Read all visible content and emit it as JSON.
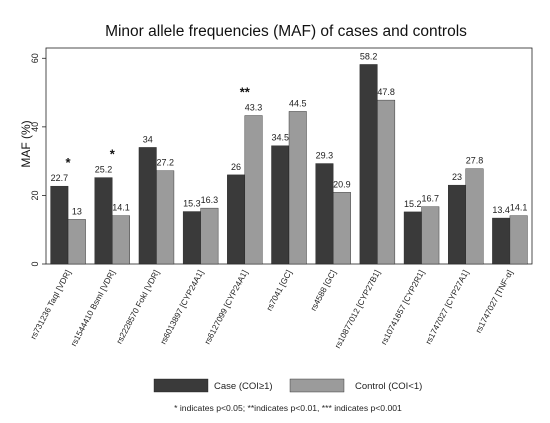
{
  "chart_data": {
    "type": "bar",
    "title": "Minor allele frequencies (MAF) of cases and controls",
    "ylabel": "MAF (%)",
    "xlabel": "",
    "ylim": [
      0,
      63
    ],
    "yticks": [
      0,
      20,
      40,
      60
    ],
    "grid": false,
    "legend_position": "bottom",
    "categories": [
      "rs731236 TaqI [VDR]",
      "rs1544410 BsmI [VDR]",
      "rs2228570 FokI [VDR]",
      "rs6013897 [CYP24A1]",
      "rs6127099 [CYP24A1]",
      "rs7041 [GC]",
      "rs4588 [GC]",
      "rs10877012 [CYP27B1]",
      "rs10741657 [CYP2R1]",
      "rs1747027 [CYP27A1]",
      "rs1747027 [TNF-α]"
    ],
    "series": [
      {
        "name": "Case (COI≥1)",
        "color": "#3a3a3a",
        "values": [
          22.7,
          25.2,
          34,
          15.3,
          26,
          34.5,
          29.3,
          58.2,
          15.2,
          23,
          13.4
        ]
      },
      {
        "name": "Control (COI<1)",
        "color": "#9b9b9b",
        "values": [
          13,
          14.1,
          27.2,
          16.3,
          43.3,
          44.5,
          20.9,
          47.8,
          16.7,
          27.8,
          14.1
        ]
      }
    ],
    "value_labels": [
      [
        "22.7",
        "13"
      ],
      [
        "25.2",
        "14.1"
      ],
      [
        "34",
        "27.2"
      ],
      [
        "15.3",
        "16.3"
      ],
      [
        "26",
        "43.3"
      ],
      [
        "34.5",
        "44.5"
      ],
      [
        "29.3",
        "20.9"
      ],
      [
        "58.2",
        "47.8"
      ],
      [
        "15.2",
        "16.7"
      ],
      [
        "23",
        "27.8"
      ],
      [
        "13.4",
        "14.1"
      ]
    ],
    "significance": [
      {
        "category_index": 0,
        "mark": "*"
      },
      {
        "category_index": 1,
        "mark": "*"
      },
      {
        "category_index": 4,
        "mark": "**"
      }
    ],
    "footnote": "* indicates p<0.05; **indicates p<0.01, *** indicates p<0.001"
  }
}
